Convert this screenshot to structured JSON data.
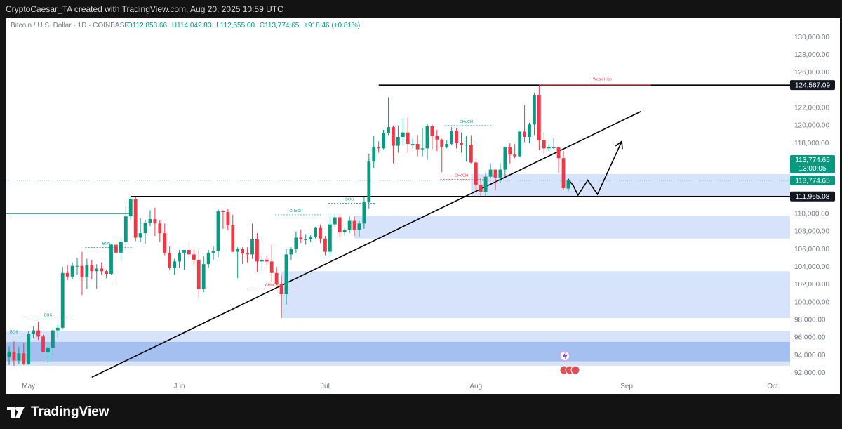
{
  "header": {
    "attribution": "CryptoCaesar_TA created with TradingView.com, Aug 20, 2025 10:59 UTC"
  },
  "branding": {
    "logo_text": "TradingView"
  },
  "legend": {
    "symbol": "Bitcoin / U.S. Dollar · 1D · COINBASE",
    "open": "O112,853.66",
    "high": "H114,042.83",
    "low": "L112,555.00",
    "close": "C113,774.65",
    "change": "+918.46 (+0.81%)"
  },
  "colors": {
    "up": "#089981",
    "down": "#f23645",
    "zone": "#bbd1f7",
    "zone_dark": "#9fbbf0",
    "label_dark": "#131722",
    "axis_text": "#787b86"
  },
  "price_labels": {
    "high_level": "124,567.09",
    "current": "113,774.65",
    "countdown": "13:00:05",
    "current_2": "113,774.65",
    "support": "111,965.08"
  },
  "chart_data": {
    "type": "candlestick",
    "timeframe": "1D",
    "y_ticks": [
      92000,
      94000,
      96000,
      98000,
      100000,
      102000,
      104000,
      106000,
      108000,
      110000,
      118000,
      120000,
      122000,
      126000,
      128000,
      130000
    ],
    "y_tick_labels": [
      "92,000.00",
      "94,000.00",
      "96,000.00",
      "98,000.00",
      "100,000.00",
      "102,000.00",
      "104,000.00",
      "106,000.00",
      "108,000.00",
      "110,000.00",
      "118,000.00",
      "120,000.00",
      "122,000.00",
      "126,000.00",
      "128,000.00",
      "130,000.00"
    ],
    "x_ticks": [
      {
        "label": "May",
        "date": "2025-05-01"
      },
      {
        "label": "Jun",
        "date": "2025-06-01"
      },
      {
        "label": "Jul",
        "date": "2025-07-01"
      },
      {
        "label": "Aug",
        "date": "2025-08-01"
      },
      {
        "label": "Sep",
        "date": "2025-09-01"
      },
      {
        "label": "Oct",
        "date": "2025-10-01"
      }
    ],
    "candles": [
      {
        "date": "2025-04-27",
        "o": 93800,
        "h": 95000,
        "l": 92900,
        "c": 94400
      },
      {
        "date": "2025-04-28",
        "o": 94400,
        "h": 95600,
        "l": 92800,
        "c": 93400
      },
      {
        "date": "2025-04-29",
        "o": 93400,
        "h": 94900,
        "l": 93000,
        "c": 94200
      },
      {
        "date": "2025-04-30",
        "o": 94200,
        "h": 95400,
        "l": 92900,
        "c": 93000
      },
      {
        "date": "2025-05-01",
        "o": 93000,
        "h": 96700,
        "l": 92900,
        "c": 96400
      },
      {
        "date": "2025-05-02",
        "o": 96400,
        "h": 97300,
        "l": 95900,
        "c": 96800
      },
      {
        "date": "2025-05-03",
        "o": 96800,
        "h": 97800,
        "l": 95700,
        "c": 96100
      },
      {
        "date": "2025-05-04",
        "o": 96100,
        "h": 96300,
        "l": 94400,
        "c": 94300
      },
      {
        "date": "2025-05-05",
        "o": 94300,
        "h": 95000,
        "l": 93100,
        "c": 94800
      },
      {
        "date": "2025-05-06",
        "o": 94800,
        "h": 97000,
        "l": 94000,
        "c": 96800
      },
      {
        "date": "2025-05-07",
        "o": 96800,
        "h": 97500,
        "l": 95900,
        "c": 97100
      },
      {
        "date": "2025-05-08",
        "o": 97100,
        "h": 104000,
        "l": 97000,
        "c": 103300
      },
      {
        "date": "2025-05-09",
        "o": 103300,
        "h": 104200,
        "l": 102500,
        "c": 102900
      },
      {
        "date": "2025-05-10",
        "o": 102900,
        "h": 104500,
        "l": 102600,
        "c": 104100
      },
      {
        "date": "2025-05-11",
        "o": 104100,
        "h": 105000,
        "l": 103100,
        "c": 104100
      },
      {
        "date": "2025-05-12",
        "o": 104100,
        "h": 105700,
        "l": 100800,
        "c": 102800
      },
      {
        "date": "2025-05-13",
        "o": 102800,
        "h": 104900,
        "l": 101500,
        "c": 104200
      },
      {
        "date": "2025-05-14",
        "o": 104200,
        "h": 104800,
        "l": 102600,
        "c": 103500
      },
      {
        "date": "2025-05-15",
        "o": 103500,
        "h": 104300,
        "l": 101500,
        "c": 103800
      },
      {
        "date": "2025-05-16",
        "o": 103800,
        "h": 104500,
        "l": 103100,
        "c": 103500
      },
      {
        "date": "2025-05-17",
        "o": 103500,
        "h": 103700,
        "l": 102700,
        "c": 103200
      },
      {
        "date": "2025-05-18",
        "o": 103200,
        "h": 106600,
        "l": 103100,
        "c": 106500
      },
      {
        "date": "2025-05-19",
        "o": 106500,
        "h": 107100,
        "l": 102000,
        "c": 105600
      },
      {
        "date": "2025-05-20",
        "o": 105600,
        "h": 107300,
        "l": 104700,
        "c": 106800
      },
      {
        "date": "2025-05-21",
        "o": 106800,
        "h": 110800,
        "l": 106100,
        "c": 109700
      },
      {
        "date": "2025-05-22",
        "o": 109700,
        "h": 111900,
        "l": 109300,
        "c": 111700
      },
      {
        "date": "2025-05-23",
        "o": 111700,
        "h": 111900,
        "l": 106900,
        "c": 107300
      },
      {
        "date": "2025-05-24",
        "o": 107300,
        "h": 109500,
        "l": 106800,
        "c": 107800
      },
      {
        "date": "2025-05-25",
        "o": 107800,
        "h": 109300,
        "l": 106600,
        "c": 109000
      },
      {
        "date": "2025-05-26",
        "o": 109000,
        "h": 110400,
        "l": 108600,
        "c": 109400
      },
      {
        "date": "2025-05-27",
        "o": 109400,
        "h": 110700,
        "l": 107500,
        "c": 108900
      },
      {
        "date": "2025-05-28",
        "o": 108900,
        "h": 109300,
        "l": 106800,
        "c": 107800
      },
      {
        "date": "2025-05-29",
        "o": 107800,
        "h": 108900,
        "l": 105300,
        "c": 105600
      },
      {
        "date": "2025-05-30",
        "o": 105600,
        "h": 106300,
        "l": 103600,
        "c": 103900
      },
      {
        "date": "2025-05-31",
        "o": 103900,
        "h": 104900,
        "l": 103100,
        "c": 104600
      },
      {
        "date": "2025-06-01",
        "o": 104600,
        "h": 105900,
        "l": 103900,
        "c": 105600
      },
      {
        "date": "2025-06-02",
        "o": 105600,
        "h": 105900,
        "l": 103700,
        "c": 105900
      },
      {
        "date": "2025-06-03",
        "o": 105900,
        "h": 106800,
        "l": 105000,
        "c": 105400
      },
      {
        "date": "2025-06-04",
        "o": 105400,
        "h": 106000,
        "l": 104200,
        "c": 104800
      },
      {
        "date": "2025-06-05",
        "o": 104800,
        "h": 105900,
        "l": 100400,
        "c": 101500
      },
      {
        "date": "2025-06-06",
        "o": 101500,
        "h": 105200,
        "l": 101100,
        "c": 104300
      },
      {
        "date": "2025-06-07",
        "o": 104300,
        "h": 105900,
        "l": 103900,
        "c": 105600
      },
      {
        "date": "2025-06-08",
        "o": 105600,
        "h": 106300,
        "l": 104800,
        "c": 105800
      },
      {
        "date": "2025-06-09",
        "o": 105800,
        "h": 110500,
        "l": 105100,
        "c": 110300
      },
      {
        "date": "2025-06-10",
        "o": 110300,
        "h": 110400,
        "l": 108300,
        "c": 110200
      },
      {
        "date": "2025-06-11",
        "o": 110200,
        "h": 110600,
        "l": 108100,
        "c": 108700
      },
      {
        "date": "2025-06-12",
        "o": 108700,
        "h": 109900,
        "l": 105700,
        "c": 105700
      },
      {
        "date": "2025-06-13",
        "o": 105700,
        "h": 106200,
        "l": 102700,
        "c": 106000
      },
      {
        "date": "2025-06-14",
        "o": 106000,
        "h": 106200,
        "l": 104300,
        "c": 105500
      },
      {
        "date": "2025-06-15",
        "o": 105500,
        "h": 106200,
        "l": 104500,
        "c": 105400
      },
      {
        "date": "2025-06-16",
        "o": 105400,
        "h": 108900,
        "l": 104900,
        "c": 107100
      },
      {
        "date": "2025-06-17",
        "o": 107100,
        "h": 107800,
        "l": 103400,
        "c": 104600
      },
      {
        "date": "2025-06-18",
        "o": 104600,
        "h": 105500,
        "l": 103500,
        "c": 104800
      },
      {
        "date": "2025-06-19",
        "o": 104800,
        "h": 105200,
        "l": 104200,
        "c": 104600
      },
      {
        "date": "2025-06-20",
        "o": 104600,
        "h": 106500,
        "l": 102300,
        "c": 103300
      },
      {
        "date": "2025-06-21",
        "o": 103300,
        "h": 104000,
        "l": 101900,
        "c": 102100
      },
      {
        "date": "2025-06-22",
        "o": 102100,
        "h": 103000,
        "l": 98200,
        "c": 100900
      },
      {
        "date": "2025-06-23",
        "o": 100900,
        "h": 106000,
        "l": 99700,
        "c": 105400
      },
      {
        "date": "2025-06-24",
        "o": 105400,
        "h": 106200,
        "l": 104800,
        "c": 106000
      },
      {
        "date": "2025-06-25",
        "o": 106000,
        "h": 108000,
        "l": 105600,
        "c": 107300
      },
      {
        "date": "2025-06-26",
        "o": 107300,
        "h": 108200,
        "l": 106700,
        "c": 107100
      },
      {
        "date": "2025-06-27",
        "o": 107100,
        "h": 107700,
        "l": 106500,
        "c": 107100
      },
      {
        "date": "2025-06-28",
        "o": 107100,
        "h": 107600,
        "l": 106800,
        "c": 107400
      },
      {
        "date": "2025-06-29",
        "o": 107400,
        "h": 108500,
        "l": 107200,
        "c": 108400
      },
      {
        "date": "2025-06-30",
        "o": 108400,
        "h": 108800,
        "l": 106700,
        "c": 107200
      },
      {
        "date": "2025-07-01",
        "o": 107200,
        "h": 107500,
        "l": 105300,
        "c": 105700
      },
      {
        "date": "2025-07-02",
        "o": 105700,
        "h": 109800,
        "l": 105200,
        "c": 108800
      },
      {
        "date": "2025-07-03",
        "o": 108800,
        "h": 110000,
        "l": 108500,
        "c": 109600
      },
      {
        "date": "2025-07-04",
        "o": 109600,
        "h": 109800,
        "l": 107300,
        "c": 107900
      },
      {
        "date": "2025-07-05",
        "o": 107900,
        "h": 108400,
        "l": 107600,
        "c": 108200
      },
      {
        "date": "2025-07-06",
        "o": 108200,
        "h": 109700,
        "l": 107800,
        "c": 109200
      },
      {
        "date": "2025-07-07",
        "o": 109200,
        "h": 109700,
        "l": 107500,
        "c": 108200
      },
      {
        "date": "2025-07-08",
        "o": 108200,
        "h": 109200,
        "l": 107400,
        "c": 108900
      },
      {
        "date": "2025-07-09",
        "o": 108900,
        "h": 111900,
        "l": 108300,
        "c": 111300
      },
      {
        "date": "2025-07-10",
        "o": 111300,
        "h": 116800,
        "l": 110600,
        "c": 115900
      },
      {
        "date": "2025-07-11",
        "o": 115900,
        "h": 118800,
        "l": 115200,
        "c": 117500
      },
      {
        "date": "2025-07-12",
        "o": 117500,
        "h": 118200,
        "l": 116900,
        "c": 117400
      },
      {
        "date": "2025-07-13",
        "o": 117400,
        "h": 119500,
        "l": 117300,
        "c": 119100
      },
      {
        "date": "2025-07-14",
        "o": 119100,
        "h": 123200,
        "l": 118900,
        "c": 119800
      },
      {
        "date": "2025-07-15",
        "o": 119800,
        "h": 119900,
        "l": 115700,
        "c": 117700
      },
      {
        "date": "2025-07-16",
        "o": 117700,
        "h": 120000,
        "l": 116900,
        "c": 118700
      },
      {
        "date": "2025-07-17",
        "o": 118700,
        "h": 120800,
        "l": 117700,
        "c": 119200
      },
      {
        "date": "2025-07-18",
        "o": 119200,
        "h": 120900,
        "l": 116900,
        "c": 117900
      },
      {
        "date": "2025-07-19",
        "o": 117900,
        "h": 118500,
        "l": 117400,
        "c": 117900
      },
      {
        "date": "2025-07-20",
        "o": 117900,
        "h": 118900,
        "l": 116500,
        "c": 117300
      },
      {
        "date": "2025-07-21",
        "o": 117300,
        "h": 119700,
        "l": 116500,
        "c": 117400
      },
      {
        "date": "2025-07-22",
        "o": 117400,
        "h": 120200,
        "l": 116100,
        "c": 119900
      },
      {
        "date": "2025-07-23",
        "o": 119900,
        "h": 120100,
        "l": 117300,
        "c": 118800
      },
      {
        "date": "2025-07-24",
        "o": 118800,
        "h": 119500,
        "l": 117100,
        "c": 118400
      },
      {
        "date": "2025-07-25",
        "o": 118400,
        "h": 118500,
        "l": 114700,
        "c": 117600
      },
      {
        "date": "2025-07-26",
        "o": 117600,
        "h": 118300,
        "l": 117400,
        "c": 117900
      },
      {
        "date": "2025-07-27",
        "o": 117900,
        "h": 119800,
        "l": 117800,
        "c": 119400
      },
      {
        "date": "2025-07-28",
        "o": 119400,
        "h": 119700,
        "l": 117400,
        "c": 118000
      },
      {
        "date": "2025-07-29",
        "o": 118000,
        "h": 119200,
        "l": 116900,
        "c": 117800
      },
      {
        "date": "2025-07-30",
        "o": 117800,
        "h": 118800,
        "l": 115900,
        "c": 117800
      },
      {
        "date": "2025-07-31",
        "o": 117800,
        "h": 118900,
        "l": 115700,
        "c": 115800
      },
      {
        "date": "2025-08-01",
        "o": 115800,
        "h": 116000,
        "l": 112700,
        "c": 113300
      },
      {
        "date": "2025-08-02",
        "o": 113300,
        "h": 114000,
        "l": 112000,
        "c": 112500
      },
      {
        "date": "2025-08-03",
        "o": 112500,
        "h": 114700,
        "l": 112000,
        "c": 114200
      },
      {
        "date": "2025-08-04",
        "o": 114200,
        "h": 115700,
        "l": 114000,
        "c": 115000
      },
      {
        "date": "2025-08-05",
        "o": 115000,
        "h": 115000,
        "l": 112700,
        "c": 114100
      },
      {
        "date": "2025-08-06",
        "o": 114100,
        "h": 115700,
        "l": 113500,
        "c": 115000
      },
      {
        "date": "2025-08-07",
        "o": 115000,
        "h": 117600,
        "l": 114300,
        "c": 117500
      },
      {
        "date": "2025-08-08",
        "o": 117500,
        "h": 118000,
        "l": 115700,
        "c": 116700
      },
      {
        "date": "2025-08-09",
        "o": 116700,
        "h": 117900,
        "l": 116300,
        "c": 116500
      },
      {
        "date": "2025-08-10",
        "o": 116500,
        "h": 119300,
        "l": 116500,
        "c": 119300
      },
      {
        "date": "2025-08-11",
        "o": 119300,
        "h": 122300,
        "l": 118100,
        "c": 118700
      },
      {
        "date": "2025-08-12",
        "o": 118700,
        "h": 120300,
        "l": 118000,
        "c": 120100
      },
      {
        "date": "2025-08-13",
        "o": 120100,
        "h": 123700,
        "l": 118900,
        "c": 123400
      },
      {
        "date": "2025-08-14",
        "o": 123400,
        "h": 124567,
        "l": 117200,
        "c": 118300
      },
      {
        "date": "2025-08-15",
        "o": 118300,
        "h": 119200,
        "l": 116800,
        "c": 117400
      },
      {
        "date": "2025-08-16",
        "o": 117400,
        "h": 117900,
        "l": 117100,
        "c": 117500
      },
      {
        "date": "2025-08-17",
        "o": 117500,
        "h": 118600,
        "l": 117300,
        "c": 117500
      },
      {
        "date": "2025-08-18",
        "o": 117500,
        "h": 117600,
        "l": 114600,
        "c": 116300
      },
      {
        "date": "2025-08-19",
        "o": 116300,
        "h": 117100,
        "l": 112700,
        "c": 112900
      },
      {
        "date": "2025-08-20",
        "o": 112853.66,
        "h": 114042.83,
        "l": 112555,
        "c": 113774.65
      }
    ],
    "horizontal_levels": [
      {
        "value": 124567.09,
        "label": "124,567.09",
        "start": "2025-07-12"
      },
      {
        "value": 111965.08,
        "label": "111,965.08",
        "start": "2025-05-22"
      }
    ],
    "trendline": {
      "from": {
        "date": "2025-05-14",
        "value": 91500
      },
      "to": {
        "date": "2025-09-04",
        "value": 121600
      }
    },
    "projection_path": [
      {
        "date": "2025-08-20",
        "value": 113900
      },
      {
        "date": "2025-08-21",
        "value": 113200
      },
      {
        "date": "2025-08-22",
        "value": 112100
      },
      {
        "date": "2025-08-24",
        "value": 113800
      },
      {
        "date": "2025-08-26",
        "value": 112200
      },
      {
        "date": "2025-08-31",
        "value": 118200
      }
    ],
    "zones": [
      {
        "from": "2025-07-31",
        "to": "end",
        "low": 112000,
        "high": 114500,
        "shade": "light"
      },
      {
        "from": "2025-07-07",
        "to": "end",
        "low": 107200,
        "high": 109800,
        "shade": "light"
      },
      {
        "from": "2025-06-22",
        "to": "end",
        "low": 98200,
        "high": 103500,
        "shade": "light"
      },
      {
        "from": "start",
        "to": "end",
        "low": 92800,
        "high": 96700,
        "shade": "light"
      },
      {
        "from": "start",
        "to": "end",
        "low": 93300,
        "high": 95500,
        "shade": "dark"
      }
    ],
    "annotations": [
      {
        "text": "BOS",
        "date": "2025-04-28",
        "value": 96500,
        "color": "up"
      },
      {
        "text": "BOS",
        "date": "2025-05-05",
        "value": 98400,
        "color": "up"
      },
      {
        "text": "BOS",
        "date": "2025-05-17",
        "value": 106500,
        "color": "up"
      },
      {
        "text": "CHoCH",
        "date": "2025-06-25",
        "value": 110200,
        "color": "up"
      },
      {
        "text": "CHoCH",
        "date": "2025-06-20",
        "value": 101800,
        "color": "down"
      },
      {
        "text": "BOS",
        "date": "2025-07-06",
        "value": 111500,
        "color": "up"
      },
      {
        "text": "CHoCH",
        "date": "2025-07-30",
        "value": 120300,
        "color": "up"
      },
      {
        "text": "CHoCH",
        "date": "2025-07-29",
        "value": 114200,
        "color": "down"
      },
      {
        "text": "Weak High",
        "date": "2025-08-27",
        "value": 125100,
        "color": "down"
      }
    ]
  }
}
